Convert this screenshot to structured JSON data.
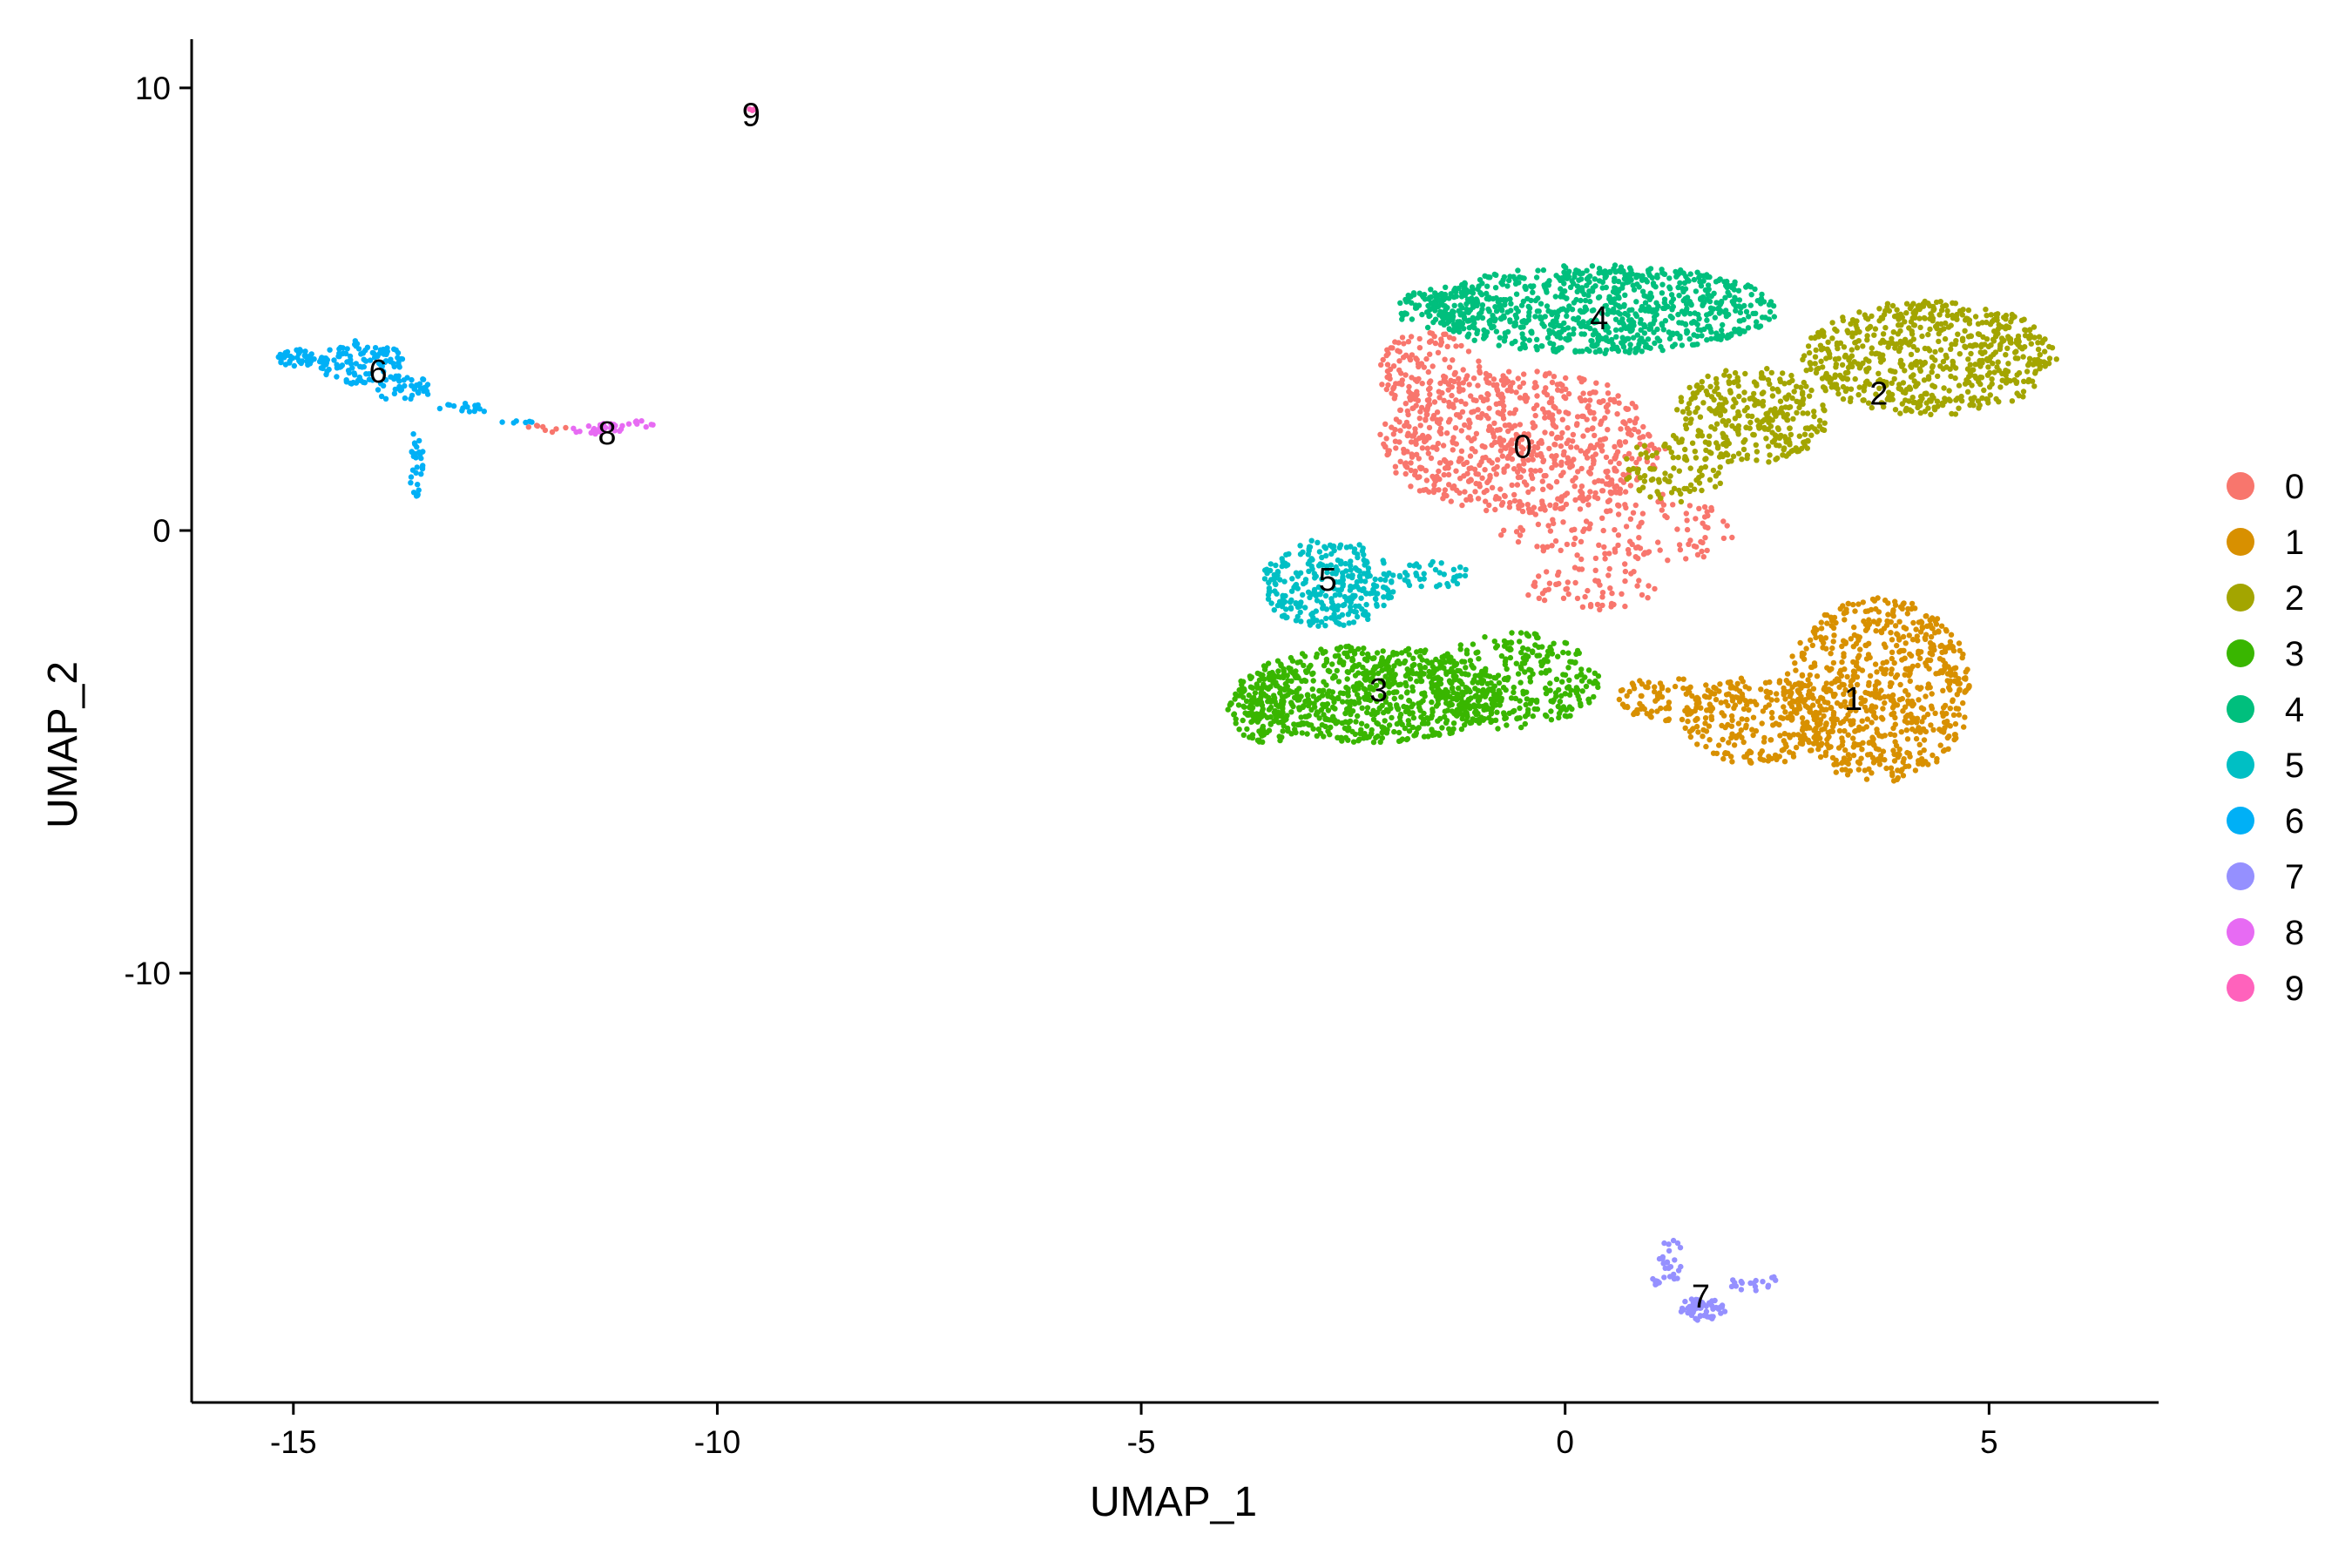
{
  "chart_data": {
    "type": "scatter",
    "title": "",
    "xlabel": "UMAP_1",
    "ylabel": "UMAP_2",
    "xlim": [
      -16.2,
      7.0
    ],
    "ylim": [
      -19.7,
      11.1
    ],
    "xticks": [
      -15,
      -10,
      -5,
      0,
      5
    ],
    "xtick_labels": [
      "-15",
      "-10",
      "-5",
      "0",
      "5"
    ],
    "yticks": [
      -10,
      0,
      10
    ],
    "ytick_labels": [
      "-10",
      "0",
      "10"
    ],
    "grid": false,
    "legend_position": "right",
    "legend": [
      {
        "label": "0",
        "color": "#F8766D"
      },
      {
        "label": "1",
        "color": "#D89000"
      },
      {
        "label": "2",
        "color": "#A3A500"
      },
      {
        "label": "3",
        "color": "#39B600"
      },
      {
        "label": "4",
        "color": "#00BF7D"
      },
      {
        "label": "5",
        "color": "#00BFC4"
      },
      {
        "label": "6",
        "color": "#00B0F6"
      },
      {
        "label": "7",
        "color": "#9590FF"
      },
      {
        "label": "8",
        "color": "#E76BF3"
      },
      {
        "label": "9",
        "color": "#FF62BC"
      }
    ],
    "cluster_labels": [
      {
        "label": "0",
        "x": -0.5,
        "y": 1.9
      },
      {
        "label": "1",
        "x": 3.4,
        "y": -3.8
      },
      {
        "label": "2",
        "x": 3.7,
        "y": 3.1
      },
      {
        "label": "3",
        "x": -2.2,
        "y": -3.6
      },
      {
        "label": "4",
        "x": 0.4,
        "y": 4.8
      },
      {
        "label": "5",
        "x": -2.8,
        "y": -1.1
      },
      {
        "label": "6",
        "x": -14.0,
        "y": 3.6
      },
      {
        "label": "7",
        "x": 1.6,
        "y": -17.3
      },
      {
        "label": "8",
        "x": -11.3,
        "y": 2.2
      },
      {
        "label": "9",
        "x": -9.6,
        "y": 9.4
      }
    ],
    "series": [
      {
        "name": "0",
        "regions": [
          {
            "cx": -0.5,
            "cy": 2.0,
            "rx": 1.7,
            "ry": 1.6,
            "n": 700
          },
          {
            "cx": -1.6,
            "cy": 3.6,
            "rx": 0.6,
            "ry": 0.9,
            "n": 120
          },
          {
            "cx": 0.6,
            "cy": 0.0,
            "rx": 1.4,
            "ry": 0.9,
            "n": 150
          },
          {
            "cx": 0.3,
            "cy": -1.3,
            "rx": 0.8,
            "ry": 0.5,
            "n": 60
          },
          {
            "cx": -12.0,
            "cy": 2.3,
            "rx": 0.25,
            "ry": 0.1,
            "n": 8
          }
        ]
      },
      {
        "name": "1",
        "regions": [
          {
            "cx": 3.7,
            "cy": -3.6,
            "rx": 1.1,
            "ry": 2.1,
            "n": 700
          },
          {
            "cx": 2.3,
            "cy": -4.3,
            "rx": 0.9,
            "ry": 1.0,
            "n": 250
          },
          {
            "cx": 1.2,
            "cy": -3.8,
            "rx": 0.6,
            "ry": 0.5,
            "n": 80
          }
        ]
      },
      {
        "name": "2",
        "regions": [
          {
            "cx": 4.3,
            "cy": 3.9,
            "rx": 1.5,
            "ry": 1.3,
            "n": 650
          },
          {
            "cx": 2.2,
            "cy": 2.6,
            "rx": 0.9,
            "ry": 1.1,
            "n": 300
          },
          {
            "cx": 1.3,
            "cy": 1.4,
            "rx": 0.6,
            "ry": 0.8,
            "n": 90
          }
        ]
      },
      {
        "name": "3",
        "regions": [
          {
            "cx": -2.3,
            "cy": -3.7,
            "rx": 1.6,
            "ry": 1.1,
            "n": 750
          },
          {
            "cx": -0.6,
            "cy": -3.4,
            "rx": 1.0,
            "ry": 1.1,
            "n": 300
          },
          {
            "cx": -3.5,
            "cy": -4.0,
            "rx": 0.5,
            "ry": 0.8,
            "n": 120
          }
        ]
      },
      {
        "name": "4",
        "regions": [
          {
            "cx": 0.4,
            "cy": 5.0,
            "rx": 2.1,
            "ry": 1.0,
            "n": 850
          },
          {
            "cx": -1.4,
            "cy": 5.0,
            "rx": 0.6,
            "ry": 0.5,
            "n": 90
          }
        ]
      },
      {
        "name": "5",
        "regions": [
          {
            "cx": -2.8,
            "cy": -1.2,
            "rx": 0.8,
            "ry": 1.0,
            "n": 300
          },
          {
            "cx": -1.6,
            "cy": -1.0,
            "rx": 0.5,
            "ry": 0.3,
            "n": 40
          }
        ]
      },
      {
        "name": "6",
        "regions": [
          {
            "cx": -14.2,
            "cy": 3.8,
            "rx": 0.5,
            "ry": 0.5,
            "n": 110
          },
          {
            "cx": -14.9,
            "cy": 3.9,
            "rx": 0.3,
            "ry": 0.2,
            "n": 45
          },
          {
            "cx": -13.7,
            "cy": 3.2,
            "rx": 0.35,
            "ry": 0.3,
            "n": 40
          },
          {
            "cx": -13.55,
            "cy": 1.5,
            "rx": 0.1,
            "ry": 0.8,
            "n": 30
          },
          {
            "cx": -13.0,
            "cy": 2.75,
            "rx": 0.3,
            "ry": 0.12,
            "n": 15
          },
          {
            "cx": -12.3,
            "cy": 2.45,
            "rx": 0.25,
            "ry": 0.1,
            "n": 6
          }
        ]
      },
      {
        "name": "7",
        "regions": [
          {
            "cx": 1.6,
            "cy": -17.6,
            "rx": 0.3,
            "ry": 0.25,
            "n": 60
          },
          {
            "cx": 1.25,
            "cy": -16.5,
            "rx": 0.15,
            "ry": 0.5,
            "n": 20
          },
          {
            "cx": 2.25,
            "cy": -17.0,
            "rx": 0.35,
            "ry": 0.2,
            "n": 18
          },
          {
            "cx": 1.15,
            "cy": -16.95,
            "rx": 0.15,
            "ry": 0.15,
            "n": 10
          }
        ]
      },
      {
        "name": "8",
        "regions": [
          {
            "cx": -11.4,
            "cy": 2.3,
            "rx": 0.35,
            "ry": 0.12,
            "n": 28
          },
          {
            "cx": -10.9,
            "cy": 2.4,
            "rx": 0.15,
            "ry": 0.08,
            "n": 8
          }
        ]
      },
      {
        "name": "9",
        "regions": [
          {
            "cx": -9.6,
            "cy": 9.5,
            "rx": 0.05,
            "ry": 0.05,
            "n": 3
          }
        ]
      }
    ]
  }
}
